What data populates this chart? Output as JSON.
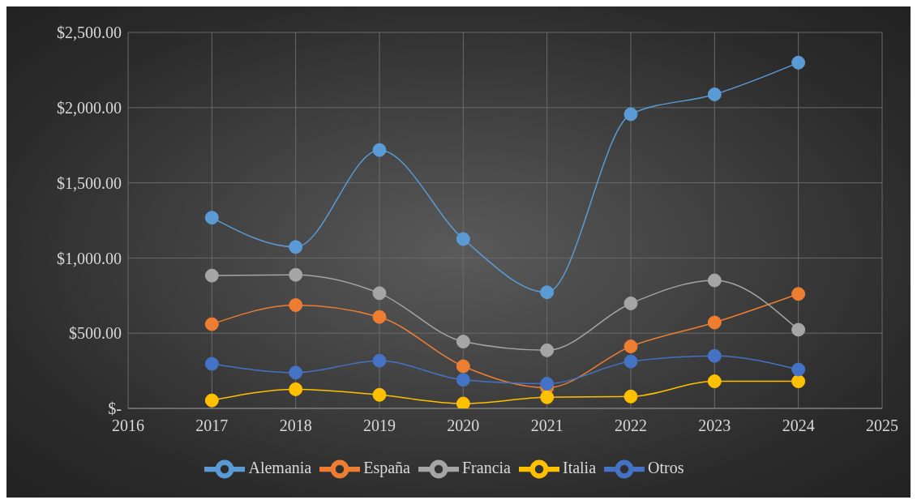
{
  "chart_data": {
    "type": "line",
    "x": [
      2017,
      2018,
      2019,
      2020,
      2021,
      2022,
      2023,
      2024
    ],
    "xlim": [
      2016,
      2025
    ],
    "xticks": [
      2016,
      2017,
      2018,
      2019,
      2020,
      2021,
      2022,
      2023,
      2024,
      2025
    ],
    "ylim": [
      0,
      2500
    ],
    "yticks": [
      {
        "value": 0,
        "label": "$-"
      },
      {
        "value": 500,
        "label": "$500.00"
      },
      {
        "value": 1000,
        "label": "$1,000.00"
      },
      {
        "value": 1500,
        "label": "$1,500.00"
      },
      {
        "value": 2000,
        "label": "$2,000.00"
      },
      {
        "value": 2500,
        "label": "$2,500.00"
      }
    ],
    "grid": true,
    "legend": "bottom",
    "marker": "circle",
    "line_style": "solid",
    "series": [
      {
        "name": "Alemania",
        "color": "#5b9bd5",
        "values": [
          1268,
          1073,
          1718,
          1126,
          772,
          1956,
          2088,
          2299
        ]
      },
      {
        "name": "España",
        "color": "#ed7d31",
        "values": [
          560,
          687,
          608,
          280,
          137,
          412,
          571,
          761
        ]
      },
      {
        "name": "Francia",
        "color": "#a5a5a5",
        "values": [
          883,
          888,
          766,
          444,
          386,
          698,
          851,
          523
        ]
      },
      {
        "name": "Italia",
        "color": "#ffc000",
        "values": [
          53,
          127,
          90,
          32,
          74,
          79,
          180,
          180
        ]
      },
      {
        "name": "Otros",
        "color": "#4472c4",
        "values": [
          296,
          238,
          317,
          190,
          164,
          312,
          349,
          259
        ]
      }
    ]
  }
}
